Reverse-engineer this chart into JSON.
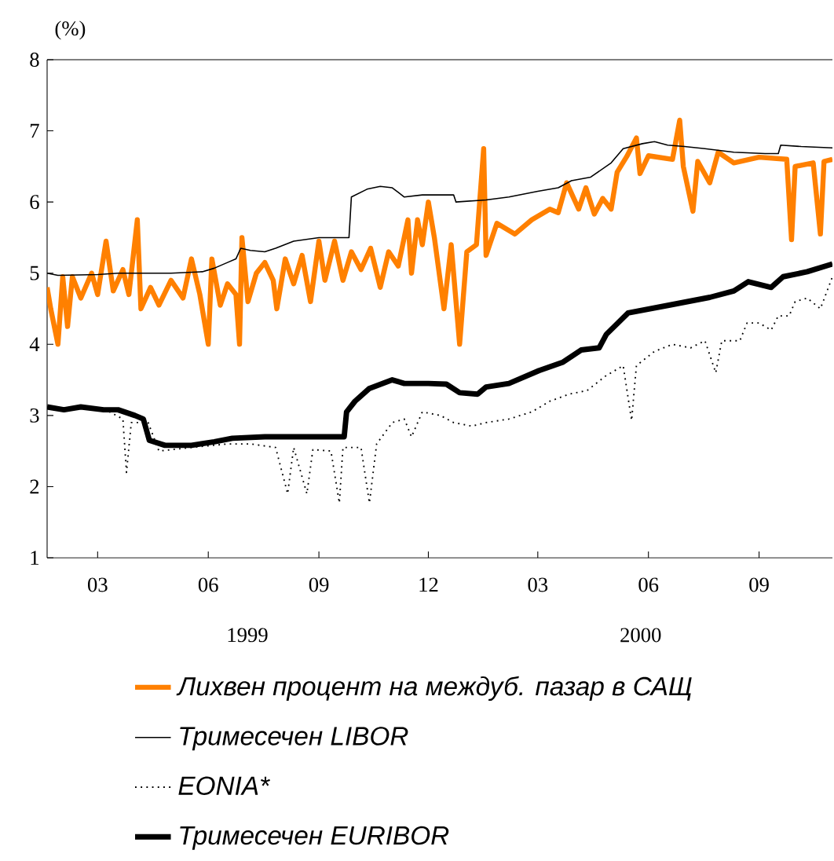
{
  "chart_data": {
    "type": "line",
    "ylabel": "(%)",
    "xlim": [
      "1999-02-01",
      "2000-11-15"
    ],
    "ylim": [
      1,
      8
    ],
    "yticks": [
      1,
      2,
      3,
      4,
      5,
      6,
      7,
      8
    ],
    "xticks": [
      {
        "value": "1999-03-15",
        "label": "03"
      },
      {
        "value": "1999-06-15",
        "label": "06"
      },
      {
        "value": "1999-09-15",
        "label": "09"
      },
      {
        "value": "1999-12-15",
        "label": "12"
      },
      {
        "value": "2000-03-15",
        "label": "03"
      },
      {
        "value": "2000-06-15",
        "label": "06"
      },
      {
        "value": "2000-09-15",
        "label": "09"
      }
    ],
    "annotations": [
      "1999",
      "2000"
    ],
    "legend": "bottom",
    "grid": false,
    "series": [
      {
        "name": "Лихвен процент на междуб. пазар в САЩ",
        "color": "#ff8000",
        "line_style": "solid",
        "x": [
          "1999-02-01",
          "1999-02-04",
          "1999-02-10",
          "1999-02-14",
          "1999-02-18",
          "1999-02-22",
          "1999-03-01",
          "1999-03-10",
          "1999-03-15",
          "1999-03-22",
          "1999-03-28",
          "1999-04-05",
          "1999-04-10",
          "1999-04-17",
          "1999-04-20",
          "1999-04-28",
          "1999-05-05",
          "1999-05-15",
          "1999-05-25",
          "1999-06-01",
          "1999-06-08",
          "1999-06-15",
          "1999-06-18",
          "1999-06-25",
          "1999-07-01",
          "1999-07-08",
          "1999-07-11",
          "1999-07-13",
          "1999-07-18",
          "1999-07-25",
          "1999-08-01",
          "1999-08-08",
          "1999-08-11",
          "1999-08-18",
          "1999-08-25",
          "1999-09-01",
          "1999-09-08",
          "1999-09-15",
          "1999-09-20",
          "1999-09-28",
          "1999-10-05",
          "1999-10-12",
          "1999-10-20",
          "1999-10-28",
          "1999-11-05",
          "1999-11-12",
          "1999-11-20",
          "1999-11-28",
          "1999-12-01",
          "1999-12-06",
          "1999-12-10",
          "1999-12-15",
          "1999-12-20",
          "1999-12-28",
          "2000-01-03",
          "2000-01-10",
          "2000-01-16",
          "2000-01-24",
          "2000-01-30",
          "2000-02-01",
          "2000-02-10",
          "2000-02-25",
          "2000-03-10",
          "2000-03-25",
          "2000-04-01",
          "2000-04-08",
          "2000-04-18",
          "2000-04-24",
          "2000-05-01",
          "2000-05-08",
          "2000-05-15",
          "2000-05-20",
          "2000-05-28",
          "2000-06-05",
          "2000-06-08",
          "2000-06-15",
          "2000-07-05",
          "2000-07-11",
          "2000-07-14",
          "2000-07-22",
          "2000-07-26",
          "2000-08-05",
          "2000-08-12",
          "2000-08-25",
          "2000-09-15",
          "2000-10-08",
          "2000-10-12",
          "2000-10-15",
          "2000-10-30",
          "2000-11-05",
          "2000-11-08",
          "2000-11-15"
        ],
        "values": [
          4.8,
          4.5,
          4.0,
          4.95,
          4.25,
          4.95,
          4.65,
          5.0,
          4.7,
          5.45,
          4.75,
          5.05,
          4.7,
          5.75,
          4.5,
          4.8,
          4.55,
          4.9,
          4.65,
          5.2,
          4.7,
          4.0,
          5.2,
          4.55,
          4.85,
          4.7,
          4.0,
          5.5,
          4.6,
          5.0,
          5.15,
          4.9,
          4.5,
          5.2,
          4.85,
          5.25,
          4.6,
          5.45,
          4.9,
          5.45,
          4.9,
          5.3,
          5.05,
          5.35,
          4.8,
          5.3,
          5.1,
          5.75,
          5.0,
          5.75,
          5.4,
          6.0,
          5.5,
          4.5,
          5.4,
          4.0,
          5.3,
          5.4,
          6.75,
          5.25,
          5.7,
          5.55,
          5.75,
          5.9,
          5.85,
          6.27,
          5.9,
          6.2,
          5.83,
          6.05,
          5.9,
          6.42,
          6.64,
          6.9,
          6.4,
          6.65,
          6.6,
          7.15,
          6.5,
          5.87,
          6.57,
          6.27,
          6.7,
          6.55,
          6.63,
          6.6,
          5.47,
          6.5,
          6.55,
          5.55,
          6.57,
          6.6
        ]
      },
      {
        "name": "Тримесечен LIBOR",
        "color": "#000000",
        "line_style": "solid",
        "x": [
          "1999-02-01",
          "1999-02-10",
          "1999-03-15",
          "1999-04-01",
          "1999-05-15",
          "1999-06-10",
          "1999-06-20",
          "1999-07-01",
          "1999-07-08",
          "1999-07-12",
          "1999-07-20",
          "1999-08-01",
          "1999-08-10",
          "1999-08-25",
          "1999-09-15",
          "1999-10-10",
          "1999-10-12",
          "1999-10-25",
          "1999-11-05",
          "1999-11-15",
          "1999-11-25",
          "1999-12-10",
          "2000-01-05",
          "2000-01-07",
          "2000-02-01",
          "2000-02-20",
          "2000-03-15",
          "2000-04-01",
          "2000-04-12",
          "2000-04-28",
          "2000-05-15",
          "2000-05-25",
          "2000-06-10",
          "2000-06-20",
          "2000-07-01",
          "2000-07-15",
          "2000-08-01",
          "2000-08-25",
          "2000-09-20",
          "2000-10-01",
          "2000-10-03",
          "2000-10-20",
          "2000-11-15"
        ],
        "values": [
          5.0,
          4.97,
          4.98,
          5.0,
          5.0,
          5.02,
          5.07,
          5.15,
          5.2,
          5.35,
          5.32,
          5.3,
          5.35,
          5.45,
          5.5,
          5.5,
          6.07,
          6.18,
          6.22,
          6.2,
          6.07,
          6.1,
          6.1,
          6.0,
          6.03,
          6.07,
          6.15,
          6.2,
          6.3,
          6.35,
          6.55,
          6.75,
          6.82,
          6.85,
          6.8,
          6.78,
          6.75,
          6.7,
          6.68,
          6.68,
          6.8,
          6.78,
          6.76
        ]
      },
      {
        "name": "EONIA*",
        "color": "#000000",
        "line_style": "dotted",
        "x": [
          "1999-02-01",
          "1999-03-01",
          "1999-03-25",
          "1999-04-05",
          "1999-04-08",
          "1999-04-12",
          "1999-04-26",
          "1999-05-05",
          "1999-06-01",
          "1999-07-01",
          "1999-07-20",
          "1999-08-10",
          "1999-08-20",
          "1999-08-25",
          "1999-09-05",
          "1999-09-10",
          "1999-09-25",
          "1999-10-02",
          "1999-10-05",
          "1999-10-20",
          "1999-10-27",
          "1999-11-02",
          "1999-11-15",
          "1999-11-25",
          "1999-12-01",
          "1999-12-10",
          "1999-12-25",
          "2000-01-05",
          "2000-01-20",
          "2000-02-01",
          "2000-02-20",
          "2000-03-10",
          "2000-03-25",
          "2000-04-10",
          "2000-04-25",
          "2000-05-10",
          "2000-05-25",
          "2000-06-01",
          "2000-06-05",
          "2000-06-20",
          "2000-07-05",
          "2000-07-20",
          "2000-08-01",
          "2000-08-10",
          "2000-08-15",
          "2000-08-30",
          "2000-09-05",
          "2000-09-15",
          "2000-09-25",
          "2000-10-01",
          "2000-10-10",
          "2000-10-15",
          "2000-10-25",
          "2000-11-05",
          "2000-11-15"
        ],
        "values": [
          3.1,
          3.1,
          3.05,
          2.95,
          2.2,
          2.9,
          2.9,
          2.5,
          2.55,
          2.6,
          2.6,
          2.55,
          1.9,
          2.55,
          1.9,
          2.52,
          2.5,
          1.77,
          2.55,
          2.55,
          1.77,
          2.6,
          2.9,
          2.95,
          2.7,
          3.05,
          3.0,
          2.9,
          2.85,
          2.9,
          2.95,
          3.05,
          3.2,
          3.3,
          3.35,
          3.55,
          3.7,
          2.93,
          3.7,
          3.9,
          4.0,
          3.95,
          4.05,
          3.6,
          4.05,
          4.05,
          4.3,
          4.3,
          4.2,
          4.4,
          4.4,
          4.6,
          4.65,
          4.5,
          4.95
        ]
      },
      {
        "name": "Тримесечен EURIBOR",
        "color": "#000000",
        "line_style": "solid",
        "x": [
          "1999-02-01",
          "1999-02-15",
          "1999-03-01",
          "1999-03-20",
          "1999-04-01",
          "1999-04-15",
          "1999-04-22",
          "1999-04-27",
          "1999-05-10",
          "1999-06-01",
          "1999-06-20",
          "1999-07-05",
          "1999-08-01",
          "1999-09-01",
          "1999-10-06",
          "1999-10-08",
          "1999-10-15",
          "1999-10-27",
          "1999-11-15",
          "1999-11-25",
          "1999-12-15",
          "1999-12-30",
          "2000-01-10",
          "2000-01-25",
          "2000-02-01",
          "2000-02-20",
          "2000-03-16",
          "2000-04-05",
          "2000-04-20",
          "2000-05-05",
          "2000-05-11",
          "2000-05-29",
          "2000-07-02",
          "2000-08-05",
          "2000-08-25",
          "2000-09-06",
          "2000-09-25",
          "2000-10-05",
          "2000-10-25",
          "2000-11-15"
        ],
        "values": [
          3.12,
          3.08,
          3.12,
          3.08,
          3.08,
          3.0,
          2.95,
          2.65,
          2.58,
          2.58,
          2.63,
          2.68,
          2.7,
          2.7,
          2.7,
          3.05,
          3.2,
          3.38,
          3.5,
          3.45,
          3.45,
          3.44,
          3.32,
          3.3,
          3.4,
          3.45,
          3.63,
          3.75,
          3.92,
          3.95,
          4.14,
          4.44,
          4.55,
          4.66,
          4.75,
          4.88,
          4.8,
          4.95,
          5.02,
          5.13
        ]
      }
    ]
  }
}
